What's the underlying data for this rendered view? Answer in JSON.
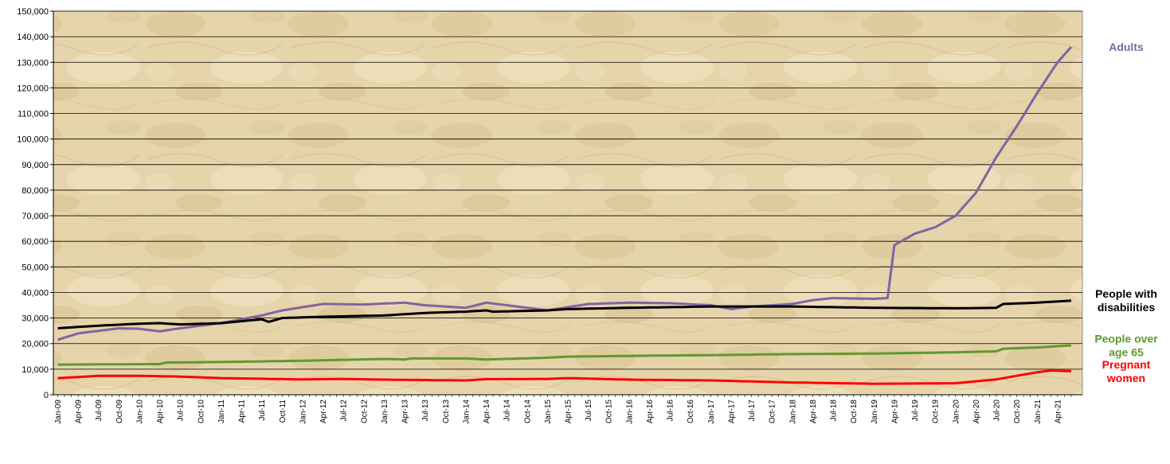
{
  "chart_data": {
    "type": "line",
    "ylim": [
      0,
      150000
    ],
    "yticks": [
      0,
      10000,
      20000,
      30000,
      40000,
      50000,
      60000,
      70000,
      80000,
      90000,
      100000,
      110000,
      120000,
      130000,
      140000,
      150000
    ],
    "ytick_labels": [
      "0",
      "10,000",
      "20,000",
      "30,000",
      "40,000",
      "50,000",
      "60,000",
      "70,000",
      "80,000",
      "90,000",
      "100,000",
      "110,000",
      "120,000",
      "130,000",
      "140,000",
      "150,000"
    ],
    "grid": true,
    "x_start": "Jan-09",
    "x_count": 150,
    "x_tick_labels": [
      "Jan-09",
      "Apr-09",
      "Jul-09",
      "Oct-09",
      "Jan-10",
      "Apr-10",
      "Jul-10",
      "Oct-10",
      "Jan-11",
      "Apr-11",
      "Jul-11",
      "Oct-11",
      "Jan-12",
      "Apr-12",
      "Jul-12",
      "Oct-12",
      "Jan-13",
      "Apr-13",
      "Jul-13",
      "Oct-13",
      "Jan-14",
      "Apr-14",
      "Jul-14",
      "Oct-14",
      "Jan-15",
      "Apr-15",
      "Jul-15",
      "Oct-15",
      "Jan-16",
      "Apr-16",
      "Jul-16",
      "Oct-16",
      "Jan-17",
      "Apr-17",
      "Jul-17",
      "Oct-17",
      "Jan-18",
      "Apr-18",
      "Jul-18",
      "Oct-18",
      "Jan-19",
      "Apr-19",
      "Jul-19",
      "Oct-19",
      "Jan-20",
      "Apr-20",
      "Jul-20",
      "Oct-20",
      "Jan-21",
      "Apr-21"
    ],
    "series": [
      {
        "name": "Adults",
        "label_lines": [
          "Adults"
        ],
        "color": "#8064a2",
        "anchors": [
          [
            "Jan-09",
            21500
          ],
          [
            "Apr-09",
            24000
          ],
          [
            "Oct-09",
            26000
          ],
          [
            "Jan-10",
            25800
          ],
          [
            "Apr-10",
            24800
          ],
          [
            "Jul-10",
            26000
          ],
          [
            "Jan-11",
            28000
          ],
          [
            "Jul-11",
            31000
          ],
          [
            "Oct-11",
            33000
          ],
          [
            "Apr-12",
            35500
          ],
          [
            "Oct-12",
            35300
          ],
          [
            "Apr-13",
            36000
          ],
          [
            "Jul-13",
            35000
          ],
          [
            "Jan-14",
            34000
          ],
          [
            "Apr-14",
            36000
          ],
          [
            "Jul-14",
            35000
          ],
          [
            "Jan-15",
            33000
          ],
          [
            "Jul-15",
            35500
          ],
          [
            "Jan-16",
            36000
          ],
          [
            "Jul-16",
            35800
          ],
          [
            "Jan-17",
            35000
          ],
          [
            "Apr-17",
            33500
          ],
          [
            "Jul-17",
            34500
          ],
          [
            "Jan-18",
            35500
          ],
          [
            "Apr-18",
            37000
          ],
          [
            "Jul-18",
            37800
          ],
          [
            "Jan-19",
            37500
          ],
          [
            "Mar-19",
            37800
          ],
          [
            "Apr-19",
            58500
          ],
          [
            "Jul-19",
            63000
          ],
          [
            "Oct-19",
            65500
          ],
          [
            "Jan-20",
            70000
          ],
          [
            "Apr-20",
            79000
          ],
          [
            "Jul-20",
            93000
          ],
          [
            "Oct-20",
            105000
          ],
          [
            "Jan-21",
            118000
          ],
          [
            "Apr-21",
            130000
          ],
          [
            "Jun-21",
            136000
          ]
        ]
      },
      {
        "name": "People with disabilities",
        "label_lines": [
          "People with",
          "disabilities"
        ],
        "color": "#000000",
        "anchors": [
          [
            "Jan-09",
            26000
          ],
          [
            "Jul-09",
            27000
          ],
          [
            "Jan-10",
            27800
          ],
          [
            "Apr-10",
            28000
          ],
          [
            "Jul-10",
            27500
          ],
          [
            "Jan-11",
            28000
          ],
          [
            "Jul-11",
            29500
          ],
          [
            "Aug-11",
            28500
          ],
          [
            "Oct-11",
            30000
          ],
          [
            "Apr-12",
            30500
          ],
          [
            "Jan-13",
            31000
          ],
          [
            "Jul-13",
            32000
          ],
          [
            "Jan-14",
            32500
          ],
          [
            "Apr-14",
            33000
          ],
          [
            "May-14",
            32500
          ],
          [
            "Jan-15",
            33000
          ],
          [
            "Apr-15",
            33500
          ],
          [
            "Jan-16",
            34000
          ],
          [
            "Jan-17",
            34500
          ],
          [
            "Jan-18",
            34500
          ],
          [
            "Jan-19",
            34000
          ],
          [
            "Jan-20",
            33800
          ],
          [
            "Jul-20",
            34000
          ],
          [
            "Aug-20",
            35500
          ],
          [
            "Jan-21",
            36000
          ],
          [
            "Jun-21",
            36800
          ]
        ]
      },
      {
        "name": "People over age 65",
        "label_lines": [
          "People over",
          "age 65"
        ],
        "color": "#5e9a2c",
        "anchors": [
          [
            "Jan-09",
            11800
          ],
          [
            "Apr-10",
            12000
          ],
          [
            "May-10",
            12600
          ],
          [
            "Jan-11",
            12800
          ],
          [
            "Jan-12",
            13300
          ],
          [
            "Jan-13",
            14000
          ],
          [
            "Apr-13",
            13800
          ],
          [
            "May-13",
            14200
          ],
          [
            "Jan-14",
            14200
          ],
          [
            "Apr-14",
            13800
          ],
          [
            "Jan-15",
            14500
          ],
          [
            "Apr-15",
            14900
          ],
          [
            "Jan-16",
            15200
          ],
          [
            "Jan-17",
            15500
          ],
          [
            "Jan-18",
            15900
          ],
          [
            "Jan-19",
            16100
          ],
          [
            "Jan-20",
            16600
          ],
          [
            "Jul-20",
            17000
          ],
          [
            "Aug-20",
            18000
          ],
          [
            "Jan-21",
            18500
          ],
          [
            "Jun-21",
            19300
          ]
        ]
      },
      {
        "name": "Pregnant women",
        "label_lines": [
          "Pregnant",
          "women"
        ],
        "color": "#ff0000",
        "anchors": [
          [
            "Jan-09",
            6500
          ],
          [
            "Jul-09",
            7400
          ],
          [
            "Jan-10",
            7400
          ],
          [
            "Jul-10",
            7100
          ],
          [
            "Jan-11",
            6500
          ],
          [
            "Jan-12",
            6000
          ],
          [
            "Jul-12",
            6200
          ],
          [
            "Jan-13",
            5900
          ],
          [
            "Jan-14",
            5600
          ],
          [
            "Apr-14",
            6100
          ],
          [
            "Jan-15",
            6200
          ],
          [
            "Apr-15",
            6500
          ],
          [
            "Jan-16",
            5900
          ],
          [
            "Jan-17",
            5600
          ],
          [
            "Jan-18",
            4800
          ],
          [
            "Jan-19",
            4300
          ],
          [
            "Jan-20",
            4500
          ],
          [
            "Jul-20",
            6000
          ],
          [
            "Jan-21",
            8800
          ],
          [
            "Mar-21",
            9500
          ],
          [
            "Jun-21",
            9200
          ]
        ]
      }
    ]
  }
}
